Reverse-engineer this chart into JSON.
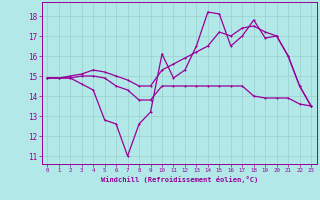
{
  "xlabel": "Windchill (Refroidissement éolien,°C)",
  "background_color": "#b2e8e8",
  "grid_color": "#9bcfcf",
  "line_color": "#990099",
  "xlim": [
    -0.5,
    23.5
  ],
  "ylim": [
    10.6,
    18.7
  ],
  "yticks": [
    11,
    12,
    13,
    14,
    15,
    16,
    17,
    18
  ],
  "xticks": [
    0,
    1,
    2,
    3,
    4,
    5,
    6,
    7,
    8,
    9,
    10,
    11,
    12,
    13,
    14,
    15,
    16,
    17,
    18,
    19,
    20,
    21,
    22,
    23
  ],
  "line1_x": [
    0,
    1,
    2,
    3,
    4,
    5,
    6,
    7,
    8,
    9,
    10,
    11,
    12,
    13,
    14,
    15,
    16,
    17,
    18,
    19,
    20,
    21,
    22,
    23
  ],
  "line1_y": [
    14.9,
    14.9,
    14.9,
    14.6,
    14.3,
    12.8,
    12.6,
    11.0,
    12.6,
    13.2,
    16.1,
    14.9,
    15.3,
    16.5,
    18.2,
    18.1,
    16.5,
    17.0,
    17.8,
    16.9,
    17.0,
    16.0,
    14.5,
    13.5
  ],
  "line2_x": [
    0,
    1,
    2,
    3,
    4,
    5,
    6,
    7,
    8,
    9,
    10,
    11,
    12,
    13,
    14,
    15,
    16,
    17,
    18,
    19,
    20,
    21,
    22,
    23
  ],
  "line2_y": [
    14.9,
    14.9,
    14.9,
    15.0,
    15.0,
    14.9,
    14.5,
    14.3,
    13.8,
    13.8,
    14.5,
    14.5,
    14.5,
    14.5,
    14.5,
    14.5,
    14.5,
    14.5,
    14.0,
    13.9,
    13.9,
    13.9,
    13.6,
    13.5
  ],
  "line3_x": [
    0,
    1,
    2,
    3,
    4,
    5,
    6,
    7,
    8,
    9,
    10,
    11,
    12,
    13,
    14,
    15,
    16,
    17,
    18,
    19,
    20,
    21,
    22,
    23
  ],
  "line3_y": [
    14.9,
    14.9,
    15.0,
    15.1,
    15.3,
    15.2,
    15.0,
    14.8,
    14.5,
    14.5,
    15.3,
    15.6,
    15.9,
    16.2,
    16.5,
    17.2,
    17.0,
    17.4,
    17.5,
    17.2,
    17.0,
    16.0,
    14.5,
    13.5
  ]
}
